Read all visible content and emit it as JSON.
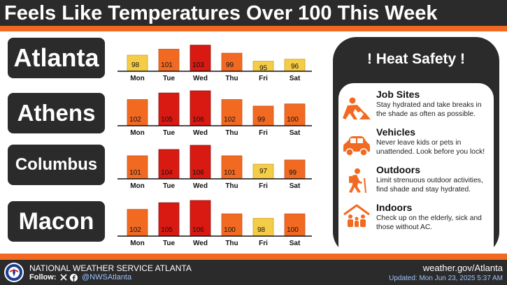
{
  "header": {
    "title": "Feels Like Temperatures Over 100 This Week"
  },
  "colors": {
    "dark": "#2b2b2b",
    "orange": "#f26a21",
    "band_95_99": "#f5cc46",
    "band_99_102": "#f26a21",
    "band_103_plus": "#d91a12",
    "link_blue": "#9cc3ff"
  },
  "chart_data": [
    {
      "type": "bar",
      "title": "Atlanta",
      "categories": [
        "Mon",
        "Tue",
        "Wed",
        "Thu",
        "Fri",
        "Sat"
      ],
      "values": [
        98,
        101,
        103,
        99,
        95,
        96
      ]
    },
    {
      "type": "bar",
      "title": "Athens",
      "categories": [
        "Mon",
        "Tue",
        "Wed",
        "Thu",
        "Fri",
        "Sat"
      ],
      "values": [
        102,
        105,
        106,
        102,
        99,
        100
      ]
    },
    {
      "type": "bar",
      "title": "Columbus",
      "categories": [
        "Mon",
        "Tue",
        "Wed",
        "Thu",
        "Fri",
        "Sat"
      ],
      "values": [
        101,
        104,
        106,
        101,
        97,
        99
      ]
    },
    {
      "type": "bar",
      "title": "Macon",
      "categories": [
        "Mon",
        "Tue",
        "Wed",
        "Thu",
        "Fri",
        "Sat"
      ],
      "values": [
        102,
        105,
        106,
        100,
        98,
        100
      ]
    }
  ],
  "safety": {
    "title": "! Heat Safety !",
    "tips": [
      {
        "icon": "worker-shovel-icon",
        "heading": "Job Sites",
        "text": "Stay hydrated and take breaks in the shade as often as possible."
      },
      {
        "icon": "car-icon",
        "heading": "Vehicles",
        "text": "Never leave kids or pets in unattended. Look before you lock!"
      },
      {
        "icon": "hiker-icon",
        "heading": "Outdoors",
        "text": "Limit strenuous outdoor activities, find shade and stay hydrated."
      },
      {
        "icon": "house-family-icon",
        "heading": "Indoors",
        "text": "Check up on the elderly, sick and those without AC."
      }
    ]
  },
  "footer": {
    "agency": "NATIONAL WEATHER SERVICE ATLANTA",
    "follow_label": "Follow:",
    "handle": "@NWSAtlanta",
    "website": "weather.gov/Atlanta",
    "updated": "Updated: Mon Jun 23, 2025 5:37 AM"
  }
}
